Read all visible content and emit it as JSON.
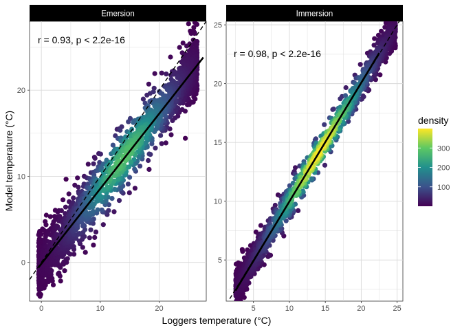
{
  "chart_data": {
    "type": "scatter",
    "xlabel": "Loggers temperature (°C)",
    "ylabel": "Model temperature (°C)",
    "legend": {
      "title": "density",
      "ticks": [
        100,
        200,
        300
      ],
      "range": [
        0,
        400
      ],
      "colormap": [
        "#440154",
        "#3b528b",
        "#21908d",
        "#5dc863",
        "#fde725"
      ],
      "placement": "right"
    },
    "panels": [
      {
        "strip": "Emersion",
        "annotation": "r = 0.93, p < 2.2e-16",
        "xlim": [
          -2,
          28
        ],
        "ylim": [
          -4.5,
          28
        ],
        "xticks": [
          0,
          10,
          20
        ],
        "yticks": [
          0,
          10,
          20
        ],
        "identity_line": {
          "x": [
            -2,
            28
          ],
          "y": [
            -2,
            28
          ],
          "style": "dashed"
        },
        "fit_line": {
          "x": [
            -0.5,
            27.5
          ],
          "y": [
            -0.6,
            23.8
          ]
        },
        "cloud": {
          "slope": 0.88,
          "intercept": -0.2,
          "x_range": [
            -0.5,
            26.5
          ],
          "spread": 2.2,
          "peak_x": 14
        }
      },
      {
        "strip": "Immersion",
        "annotation": "r = 0.98, p < 2.2e-16",
        "xlim": [
          1.2,
          25.8
        ],
        "ylim": [
          1.5,
          25.3
        ],
        "xticks": [
          5,
          10,
          15,
          20,
          25
        ],
        "yticks": [
          5,
          10,
          15,
          20,
          25
        ],
        "identity_line": {
          "x": [
            1.2,
            25.8
          ],
          "y": [
            1.2,
            25.8
          ],
          "style": "dashed"
        },
        "fit_line": {
          "x": [
            2.5,
            22.5
          ],
          "y": [
            2.4,
            22.6
          ]
        },
        "cloud": {
          "slope": 1.0,
          "intercept": 0.0,
          "x_range": [
            2.5,
            24.8
          ],
          "spread": 0.9,
          "peak_x": 14
        }
      }
    ]
  }
}
